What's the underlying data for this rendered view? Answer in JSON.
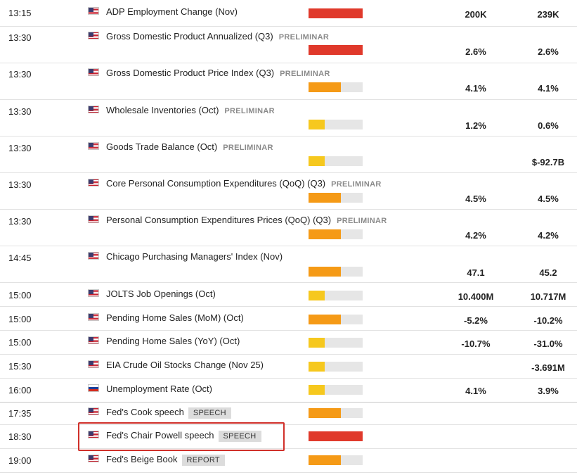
{
  "colors": {
    "high": "#e0392b",
    "medium": "#f59a16",
    "low": "#f6c81e"
  },
  "events": [
    {
      "time": "13:15",
      "title": "ADP Employment Change (Nov)",
      "tag": "",
      "badge": "",
      "flag": "us",
      "impact": 1.0,
      "impact_level": "high",
      "actual": "200K",
      "previous": "239K"
    },
    {
      "time": "13:30",
      "title": "Gross Domestic Product Annualized (Q3)",
      "tag": "PRELIMINAR",
      "badge": "",
      "flag": "us",
      "impact": 1.0,
      "impact_level": "high",
      "actual": "2.6%",
      "previous": "2.6%"
    },
    {
      "time": "13:30",
      "title": "Gross Domestic Product Price Index (Q3)",
      "tag": "PRELIMINAR",
      "badge": "",
      "flag": "us",
      "impact": 0.6,
      "impact_level": "medium",
      "actual": "4.1%",
      "previous": "4.1%"
    },
    {
      "time": "13:30",
      "title": "Wholesale Inventories (Oct)",
      "tag": "PRELIMINAR",
      "badge": "",
      "flag": "us",
      "impact": 0.3,
      "impact_level": "low",
      "actual": "1.2%",
      "previous": "0.6%"
    },
    {
      "time": "13:30",
      "title": "Goods Trade Balance (Oct)",
      "tag": "PRELIMINAR",
      "badge": "",
      "flag": "us",
      "impact": 0.3,
      "impact_level": "low",
      "actual": "",
      "previous": "$-92.7B"
    },
    {
      "time": "13:30",
      "title": "Core Personal Consumption Expenditures (QoQ) (Q3)",
      "tag": "PRELIMINAR",
      "badge": "",
      "flag": "us",
      "impact": 0.6,
      "impact_level": "medium",
      "actual": "4.5%",
      "previous": "4.5%"
    },
    {
      "time": "13:30",
      "title": "Personal Consumption Expenditures Prices (QoQ) (Q3)",
      "tag": "PRELIMINAR",
      "badge": "",
      "flag": "us",
      "impact": 0.6,
      "impact_level": "medium",
      "actual": "4.2%",
      "previous": "4.2%"
    },
    {
      "time": "14:45",
      "title": "Chicago Purchasing Managers' Index (Nov)",
      "tag": "",
      "badge": "",
      "flag": "us",
      "impact": 0.6,
      "impact_level": "medium",
      "actual": "47.1",
      "previous": "45.2"
    },
    {
      "time": "15:00",
      "title": "JOLTS Job Openings (Oct)",
      "tag": "",
      "badge": "",
      "flag": "us",
      "impact": 0.3,
      "impact_level": "low",
      "actual": "10.400M",
      "previous": "10.717M"
    },
    {
      "time": "15:00",
      "title": "Pending Home Sales (MoM) (Oct)",
      "tag": "",
      "badge": "",
      "flag": "us",
      "impact": 0.6,
      "impact_level": "medium",
      "actual": "-5.2%",
      "previous": "-10.2%"
    },
    {
      "time": "15:00",
      "title": "Pending Home Sales (YoY) (Oct)",
      "tag": "",
      "badge": "",
      "flag": "us",
      "impact": 0.3,
      "impact_level": "low",
      "actual": "-10.7%",
      "previous": "-31.0%"
    },
    {
      "time": "15:30",
      "title": "EIA Crude Oil Stocks Change (Nov 25)",
      "tag": "",
      "badge": "",
      "flag": "us",
      "impact": 0.3,
      "impact_level": "low",
      "actual": "",
      "previous": "-3.691M"
    },
    {
      "time": "16:00",
      "title": "Unemployment Rate (Oct)",
      "tag": "",
      "badge": "",
      "flag": "ru",
      "impact": 0.3,
      "impact_level": "low",
      "actual": "4.1%",
      "previous": "3.9%"
    },
    {
      "time": "17:35",
      "title": "Fed's Cook speech",
      "tag": "",
      "badge": "SPEECH",
      "flag": "us",
      "impact": 0.6,
      "impact_level": "medium",
      "actual": "",
      "previous": ""
    },
    {
      "time": "18:30",
      "title": "Fed's Chair Powell speech",
      "tag": "",
      "badge": "SPEECH",
      "flag": "us",
      "impact": 1.0,
      "impact_level": "high",
      "actual": "",
      "previous": ""
    },
    {
      "time": "19:00",
      "title": "Fed's Beige Book",
      "tag": "",
      "badge": "REPORT",
      "flag": "us",
      "impact": 0.6,
      "impact_level": "medium",
      "actual": "",
      "previous": ""
    }
  ]
}
